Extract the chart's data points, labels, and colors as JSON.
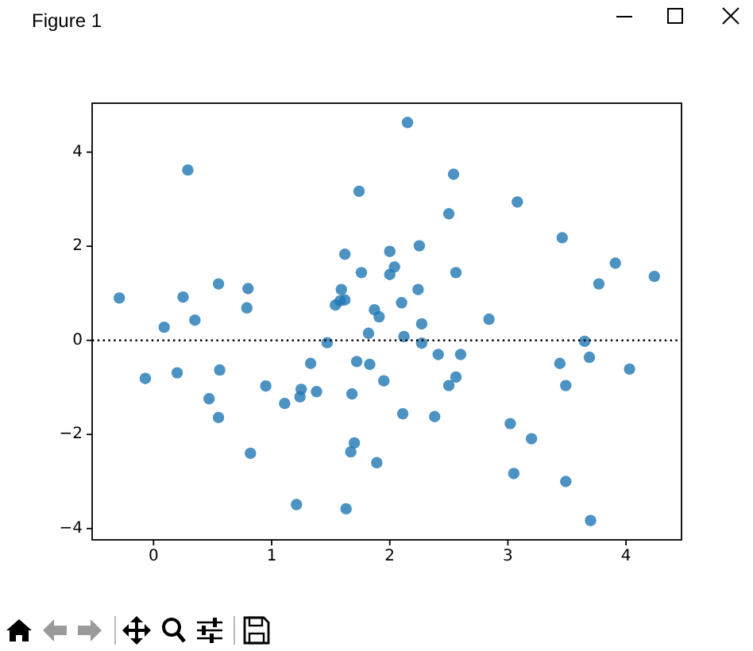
{
  "chart_data": {
    "type": "scatter",
    "title": "Figure 1",
    "x": [
      -0.29,
      -0.07,
      0.09,
      0.2,
      0.25,
      0.29,
      0.35,
      0.47,
      0.55,
      0.55,
      0.56,
      0.79,
      0.8,
      0.82,
      0.95,
      1.11,
      1.21,
      1.24,
      1.25,
      1.33,
      1.38,
      1.47,
      1.54,
      1.58,
      1.62,
      1.59,
      1.62,
      1.63,
      1.67,
      1.68,
      1.7,
      1.72,
      1.74,
      1.76,
      1.82,
      1.83,
      1.87,
      1.89,
      1.91,
      1.95,
      2.0,
      2.0,
      2.04,
      2.1,
      2.11,
      2.12,
      2.15,
      2.24,
      2.25,
      2.27,
      2.27,
      2.38,
      2.41,
      2.5,
      2.5,
      2.54,
      2.56,
      2.56,
      2.6,
      2.84,
      3.02,
      3.05,
      3.08,
      3.2,
      3.44,
      3.46,
      3.49,
      3.49,
      3.65,
      3.69,
      3.7,
      3.77,
      3.91,
      4.03,
      4.24
    ],
    "values": [
      0.9,
      -0.81,
      0.28,
      -0.69,
      0.92,
      3.62,
      0.43,
      -1.24,
      1.2,
      -1.64,
      -0.63,
      0.69,
      1.1,
      -2.4,
      -0.97,
      -1.34,
      -3.49,
      -1.2,
      -1.04,
      -0.49,
      -1.09,
      -0.05,
      0.75,
      0.84,
      0.86,
      1.08,
      1.83,
      -3.58,
      -2.37,
      -1.14,
      -2.18,
      -0.45,
      3.17,
      1.44,
      0.15,
      -0.51,
      0.65,
      -2.6,
      0.5,
      -0.86,
      1.89,
      1.4,
      1.56,
      0.8,
      -1.56,
      0.08,
      4.63,
      1.08,
      2.01,
      0.35,
      -0.06,
      -1.62,
      -0.3,
      2.69,
      -0.96,
      3.53,
      1.44,
      -0.78,
      -0.3,
      0.45,
      -1.77,
      -2.83,
      2.94,
      -2.09,
      -0.49,
      2.18,
      -0.96,
      -3.0,
      -0.02,
      -0.36,
      -3.83,
      1.2,
      1.64,
      -0.61,
      1.36
    ],
    "color": "#1f77b4",
    "marker": "circle",
    "xlim": [
      -0.52,
      4.47
    ],
    "ylim": [
      -4.24,
      5.04
    ],
    "xticks": [
      0,
      1,
      2,
      3,
      4
    ],
    "yticks": [
      {
        "value": -4,
        "label": "−4"
      },
      {
        "value": -2,
        "label": "−2"
      },
      0,
      2,
      4
    ],
    "ref_lines": [
      {
        "axis": "y",
        "value": 0,
        "color": "#000000",
        "line_style": "dotted"
      }
    ]
  }
}
